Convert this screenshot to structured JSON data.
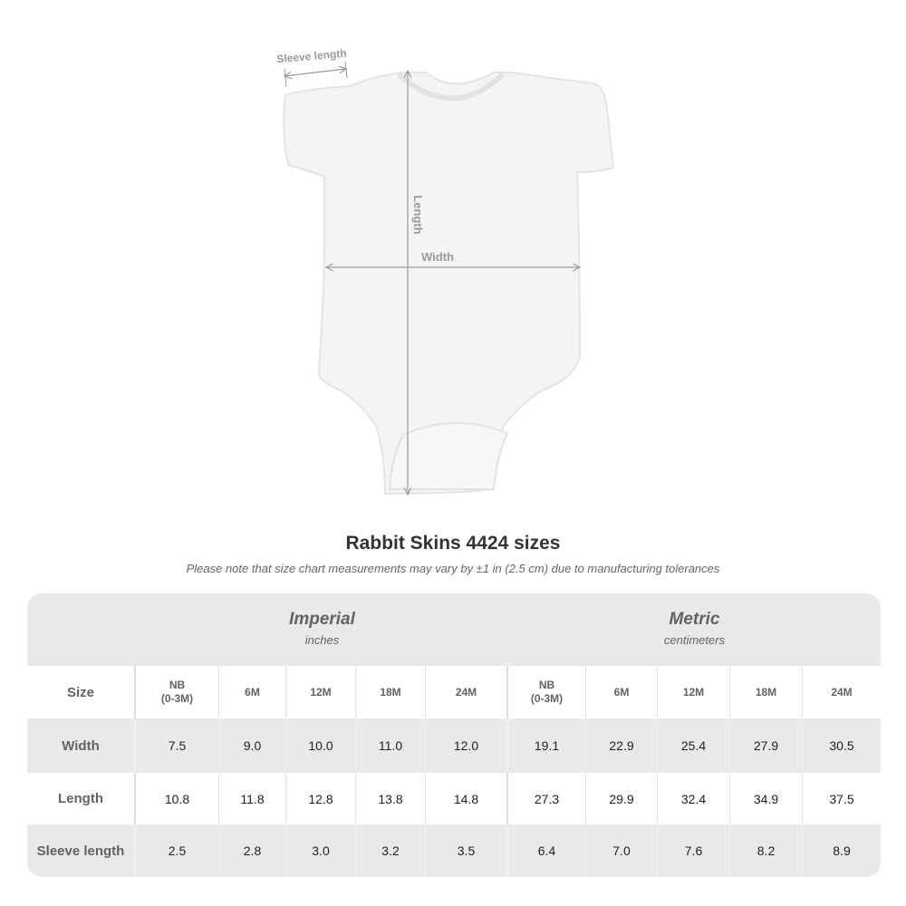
{
  "diagram": {
    "labels": {
      "sleeve": "Sleeve length",
      "length": "Length",
      "width": "Width"
    },
    "colors": {
      "garment": "#f4f4f4",
      "measure_line": "#9a9a9a"
    }
  },
  "title": "Rabbit Skins 4424 sizes",
  "note": "Please note that size chart measurements may vary by ±1 in (2.5 cm) due to manufacturing tolerances",
  "table": {
    "groups": [
      {
        "name": "Imperial",
        "unit": "inches"
      },
      {
        "name": "Metric",
        "unit": "centimeters"
      }
    ],
    "size_label": "Size",
    "sizes": [
      "NB\n(0-3M)",
      "6M",
      "12M",
      "18M",
      "24M"
    ],
    "rows": [
      {
        "label": "Width",
        "imperial": [
          "7.5",
          "9.0",
          "10.0",
          "11.0",
          "12.0"
        ],
        "metric": [
          "19.1",
          "22.9",
          "25.4",
          "27.9",
          "30.5"
        ]
      },
      {
        "label": "Length",
        "imperial": [
          "10.8",
          "11.8",
          "12.8",
          "13.8",
          "14.8"
        ],
        "metric": [
          "27.3",
          "29.9",
          "32.4",
          "34.9",
          "37.5"
        ]
      },
      {
        "label": "Sleeve length",
        "imperial": [
          "2.5",
          "2.8",
          "3.0",
          "3.2",
          "3.5"
        ],
        "metric": [
          "6.4",
          "7.0",
          "7.6",
          "8.2",
          "8.9"
        ]
      }
    ]
  }
}
